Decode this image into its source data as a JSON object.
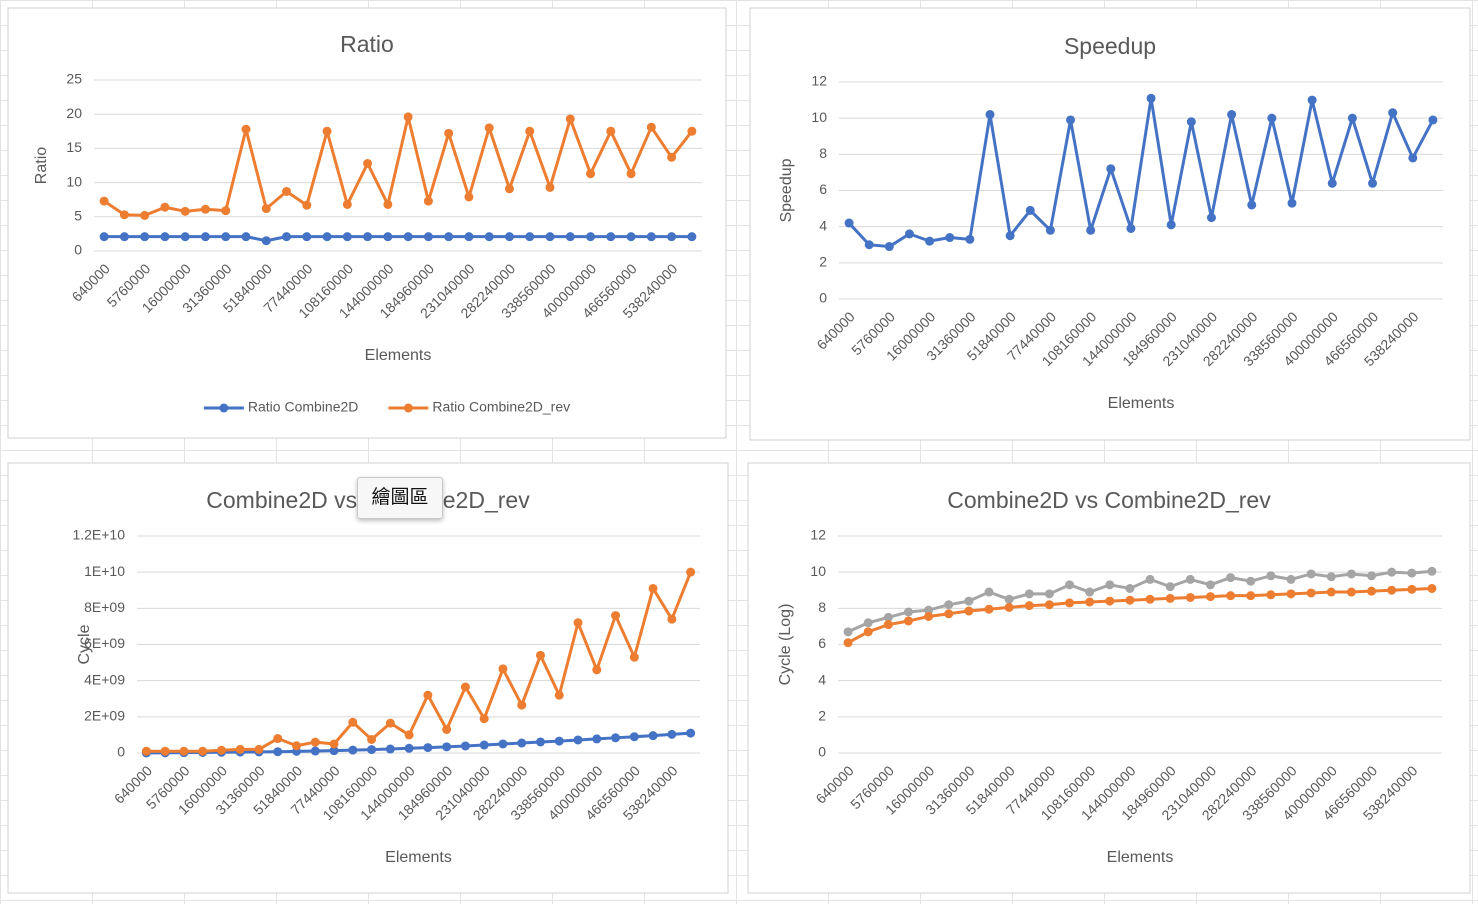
{
  "chart_data": [
    {
      "type": "line",
      "title": "Ratio",
      "x_label": "Elements",
      "y_label": "Ratio",
      "categories": [
        640000,
        null,
        5760000,
        null,
        16000000,
        null,
        31360000,
        null,
        51840000,
        null,
        77440000,
        null,
        108160000,
        null,
        144000000,
        null,
        184960000,
        null,
        231040000,
        null,
        282240000,
        null,
        338560000,
        null,
        400000000,
        null,
        466560000,
        null,
        538240000,
        null
      ],
      "series": [
        {
          "name": "Ratio Combine2D",
          "color": "#4472c4",
          "values": [
            2.1,
            2.1,
            2.1,
            2.1,
            2.1,
            2.1,
            2.1,
            2.1,
            1.5,
            2.1,
            2.1,
            2.1,
            2.1,
            2.1,
            2.1,
            2.1,
            2.1,
            2.1,
            2.1,
            2.1,
            2.1,
            2.1,
            2.1,
            2.1,
            2.1,
            2.1,
            2.1,
            2.1,
            2.1,
            2.1
          ]
        },
        {
          "name": "Ratio Combine2D_rev",
          "color": "#ed7d31",
          "values": [
            7.3,
            5.3,
            5.2,
            6.4,
            5.8,
            6.1,
            5.9,
            17.8,
            6.2,
            8.7,
            6.7,
            17.5,
            6.8,
            12.8,
            6.8,
            19.6,
            7.3,
            17.2,
            7.9,
            18.0,
            9.1,
            17.5,
            9.3,
            19.3,
            11.3,
            17.5,
            11.3,
            18.1,
            13.7,
            17.5
          ]
        }
      ],
      "ylim": [
        0,
        25
      ],
      "yticks": [
        0,
        5,
        10,
        15,
        20,
        25
      ],
      "grid": true,
      "legend": "bottom"
    },
    {
      "type": "line",
      "title": "Speedup",
      "x_label": "Elements",
      "y_label": "Speedup",
      "categories": [
        640000,
        null,
        5760000,
        null,
        16000000,
        null,
        31360000,
        null,
        51840000,
        null,
        77440000,
        null,
        108160000,
        null,
        144000000,
        null,
        184960000,
        null,
        231040000,
        null,
        282240000,
        null,
        338560000,
        null,
        400000000,
        null,
        466560000,
        null,
        538240000,
        null
      ],
      "series": [
        {
          "color": "#4472c4",
          "values": [
            4.2,
            3.0,
            2.9,
            3.6,
            3.2,
            3.4,
            3.3,
            10.2,
            3.5,
            4.9,
            3.8,
            9.9,
            3.8,
            7.2,
            3.9,
            11.1,
            4.1,
            9.8,
            4.5,
            10.2,
            5.2,
            10.0,
            5.3,
            11.0,
            6.4,
            10.0,
            6.4,
            10.3,
            7.8,
            9.9
          ]
        }
      ],
      "ylim": [
        0,
        12
      ],
      "yticks": [
        0,
        2,
        4,
        6,
        8,
        10,
        12
      ],
      "grid": true
    },
    {
      "type": "line",
      "title": "Combine2D vs Combine2D_rev",
      "x_label": "Elements",
      "y_label": "Cycle",
      "categories": [
        640000,
        null,
        5760000,
        null,
        16000000,
        null,
        31360000,
        null,
        51840000,
        null,
        77440000,
        null,
        108160000,
        null,
        144000000,
        null,
        184960000,
        null,
        231040000,
        null,
        282240000,
        null,
        338560000,
        null,
        400000000,
        null,
        466560000,
        null,
        538240000,
        null
      ],
      "series": [
        {
          "color": "#4472c4",
          "values": [
            5000000.0,
            10000000.0,
            20000000.0,
            30000000.0,
            40000000.0,
            50000000.0,
            60000000.0,
            70000000.0,
            90000000.0,
            110000000.0,
            130000000.0,
            160000000.0,
            190000000.0,
            220000000.0,
            260000000.0,
            300000000.0,
            340000000.0,
            390000000.0,
            440000000.0,
            500000000.0,
            550000000.0,
            610000000.0,
            660000000.0,
            720000000.0,
            780000000.0,
            840000000.0,
            900000000.0,
            960000000.0,
            1030000000.0,
            1100000000.0
          ]
        },
        {
          "color": "#ed7d31",
          "values": [
            100000000.0,
            100000000.0,
            100000000.0,
            100000000.0,
            150000000.0,
            200000000.0,
            200000000.0,
            800000000.0,
            400000000.0,
            600000000.0,
            500000000.0,
            1700000000.0,
            750000000.0,
            1650000000.0,
            1000000000.0,
            3200000000.0,
            1300000000.0,
            3650000000.0,
            1900000000.0,
            4650000000.0,
            2650000000.0,
            5400000000.0,
            3200000000.0,
            7200000000.0,
            4600000000.0,
            7600000000.0,
            5300000000.0,
            9100000000.0,
            7400000000.0,
            10000000000.0
          ]
        }
      ],
      "ylim": [
        0,
        12000000000
      ],
      "yticks": [
        0,
        {
          "value": 2000000000,
          "label": "2E+09"
        },
        {
          "value": 4000000000,
          "label": "4E+09"
        },
        {
          "value": 6000000000,
          "label": "6E+09"
        },
        {
          "value": 8000000000,
          "label": "8E+09"
        },
        {
          "value": 10000000000,
          "label": "1E+10"
        },
        {
          "value": 12000000000,
          "label": "1.2E+10"
        }
      ],
      "grid": true
    },
    {
      "type": "line",
      "title": "Combine2D vs Combine2D_rev",
      "x_label": "Elements",
      "y_label": "Cycle (Log)",
      "categories": [
        640000,
        null,
        5760000,
        null,
        16000000,
        null,
        31360000,
        null,
        51840000,
        null,
        77440000,
        null,
        108160000,
        null,
        144000000,
        null,
        184960000,
        null,
        231040000,
        null,
        282240000,
        null,
        338560000,
        null,
        400000000,
        null,
        466560000,
        null,
        538240000,
        null
      ],
      "series": [
        {
          "color": "#a5a5a5",
          "values": [
            6.7,
            7.2,
            7.5,
            7.8,
            7.9,
            8.2,
            8.4,
            8.9,
            8.5,
            8.8,
            8.8,
            9.3,
            8.9,
            9.3,
            9.1,
            9.6,
            9.2,
            9.6,
            9.3,
            9.7,
            9.5,
            9.8,
            9.6,
            9.9,
            9.75,
            9.9,
            9.8,
            10.0,
            9.95,
            10.05
          ]
        },
        {
          "color": "#ed7d31",
          "values": [
            6.1,
            6.7,
            7.1,
            7.3,
            7.55,
            7.7,
            7.85,
            7.95,
            8.05,
            8.15,
            8.2,
            8.3,
            8.35,
            8.4,
            8.45,
            8.5,
            8.55,
            8.6,
            8.65,
            8.7,
            8.7,
            8.75,
            8.8,
            8.85,
            8.9,
            8.9,
            8.95,
            9.0,
            9.05,
            9.1
          ]
        }
      ],
      "ylim": [
        0,
        12
      ],
      "yticks": [
        0,
        2,
        4,
        6,
        8,
        10,
        12
      ],
      "grid": true
    }
  ],
  "tooltip": "繪圖區"
}
